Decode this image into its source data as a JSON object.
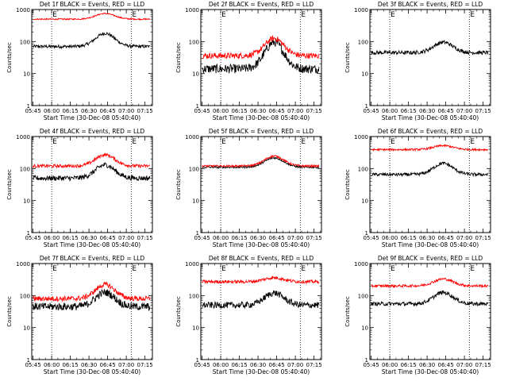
{
  "figure": {
    "common": {
      "xlabel": "Start Time (30-Dec-08 05:40:40)",
      "ylabel": "Counts/sec",
      "xticks": [
        "05:45",
        "06:00",
        "06:15",
        "06:30",
        "06:45",
        "07:00",
        "07:15"
      ],
      "ylog_ticks": [
        "1",
        "10",
        "100",
        "1000"
      ],
      "ylim": [
        1,
        1000
      ],
      "xlim_minutes": [
        -1,
        96
      ],
      "dotted_vlines_minutes": [
        15,
        79
      ],
      "marker_labels": [
        "E",
        "E"
      ],
      "series_colors": {
        "events": "#000000",
        "lld": "#ff0000"
      }
    }
  },
  "chart_data": [
    {
      "type": "line",
      "title": "Det 1f BLACK = Events, RED = LLD",
      "series": [
        {
          "color": "#000000",
          "base": 70,
          "peak": 180,
          "noise": 0.05
        },
        {
          "color": "#ff0000",
          "base": 500,
          "peak": 750,
          "noise": 0.02
        }
      ]
    },
    {
      "type": "line",
      "title": "Det 2f BLACK = Events, RED = LLD",
      "series": [
        {
          "color": "#000000",
          "base": 14,
          "peak": 95,
          "noise": 0.14
        },
        {
          "color": "#ff0000",
          "base": 36,
          "peak": 125,
          "noise": 0.09
        }
      ]
    },
    {
      "type": "line",
      "title": "Det 3f BLACK = Events, RED = LLD",
      "series": [
        {
          "color": "#000000",
          "base": 45,
          "peak": 95,
          "noise": 0.06
        }
      ]
    },
    {
      "type": "line",
      "title": "Det 4f BLACK = Events, RED = LLD",
      "series": [
        {
          "color": "#000000",
          "base": 50,
          "peak": 130,
          "noise": 0.08
        },
        {
          "color": "#ff0000",
          "base": 120,
          "peak": 270,
          "noise": 0.05
        }
      ]
    },
    {
      "type": "line",
      "title": "Det 5f BLACK = Events, RED = LLD",
      "series": [
        {
          "color": "#000000",
          "base": 110,
          "peak": 215,
          "noise": 0.03
        },
        {
          "color": "#ff0000",
          "base": 120,
          "peak": 245,
          "noise": 0.03
        }
      ]
    },
    {
      "type": "line",
      "title": "Det 6f BLACK = Events, RED = LLD",
      "series": [
        {
          "color": "#000000",
          "base": 65,
          "peak": 145,
          "noise": 0.05
        },
        {
          "color": "#ff0000",
          "base": 390,
          "peak": 520,
          "noise": 0.03
        }
      ]
    },
    {
      "type": "line",
      "title": "Det 7f BLACK = Events, RED = LLD",
      "series": [
        {
          "color": "#000000",
          "base": 45,
          "peak": 125,
          "noise": 0.12
        },
        {
          "color": "#ff0000",
          "base": 80,
          "peak": 220,
          "noise": 0.08
        }
      ]
    },
    {
      "type": "line",
      "title": "Det 8f BLACK = Events, RED = LLD",
      "series": [
        {
          "color": "#000000",
          "base": 50,
          "peak": 120,
          "noise": 0.1
        },
        {
          "color": "#ff0000",
          "base": 270,
          "peak": 360,
          "noise": 0.05
        }
      ]
    },
    {
      "type": "line",
      "title": "Det 9f BLACK = Events, RED = LLD",
      "series": [
        {
          "color": "#000000",
          "base": 55,
          "peak": 125,
          "noise": 0.06
        },
        {
          "color": "#ff0000",
          "base": 200,
          "peak": 330,
          "noise": 0.04
        }
      ]
    }
  ]
}
